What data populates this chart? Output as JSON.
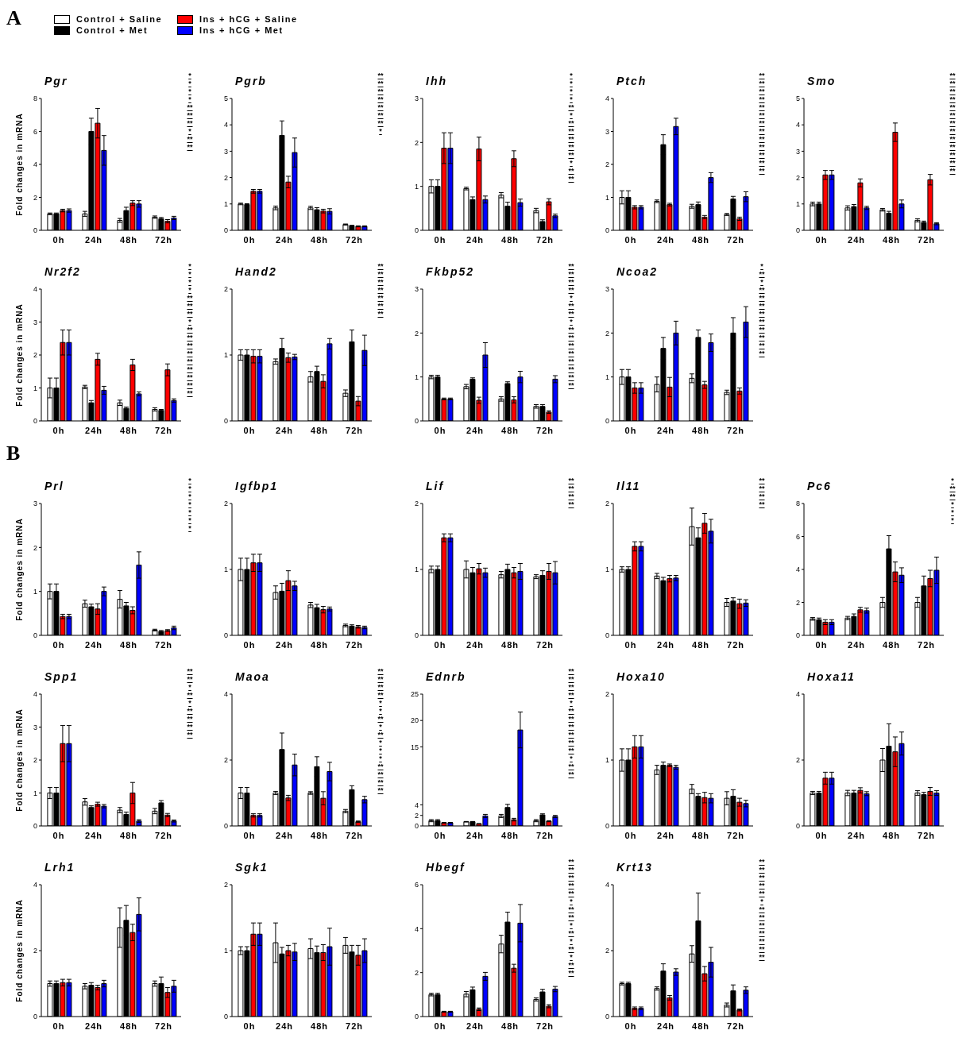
{
  "chart_data": [
    {
      "type": "bar",
      "title": "Pgr",
      "ylabel": "Fold changes in mRNA",
      "legend": "top right",
      "categories": [
        "0h",
        "24h",
        "48h",
        "72h"
      ],
      "ylim": [
        0,
        8
      ],
      "yticks": [
        0,
        2,
        4,
        6,
        8
      ],
      "series": [
        {
          "name": "Control + Saline",
          "color": "#ffffff",
          "values": [
            1.0,
            1.0,
            0.6,
            0.8
          ],
          "errors": [
            0.05,
            0.15,
            0.12,
            0.07
          ]
        },
        {
          "name": "Control + Met",
          "color": "#000000",
          "values": [
            1.0,
            6.0,
            1.2,
            0.7
          ],
          "errors": [
            0.05,
            0.8,
            0.2,
            0.08
          ]
        },
        {
          "name": "Ins + hCG + Saline",
          "color": "#ff0000",
          "values": [
            1.2,
            6.5,
            1.65,
            0.55
          ],
          "errors": [
            0.08,
            0.9,
            0.15,
            0.1
          ]
        },
        {
          "name": "Ins + hCG + Met",
          "color": "#0000ff",
          "values": [
            1.2,
            4.85,
            1.6,
            0.75
          ],
          "errors": [
            0.1,
            0.9,
            0.2,
            0.1
          ]
        }
      ],
      "annotations": [
        "A",
        "*",
        "*",
        "*",
        "*",
        "**",
        "**",
        "**",
        "*",
        "**",
        "**"
      ]
    },
    {
      "type": "bar",
      "title": "Pgrb",
      "categories": [
        "0h",
        "24h",
        "48h",
        "72h"
      ],
      "ylim": [
        0,
        5
      ],
      "yticks": [
        0,
        1,
        2,
        3,
        4,
        5
      ],
      "series": [
        {
          "color": "#ffffff",
          "values": [
            1.0,
            0.85,
            0.85,
            0.22
          ],
          "errors": [
            0.03,
            0.07,
            0.06,
            0.02
          ]
        },
        {
          "color": "#000000",
          "values": [
            0.98,
            3.6,
            0.78,
            0.17
          ],
          "errors": [
            0.03,
            0.55,
            0.08,
            0.02
          ]
        },
        {
          "color": "#ff0000",
          "values": [
            1.48,
            1.83,
            0.73,
            0.15
          ],
          "errors": [
            0.07,
            0.22,
            0.07,
            0.02
          ]
        },
        {
          "color": "#0000ff",
          "values": [
            1.48,
            2.95,
            0.72,
            0.15
          ],
          "errors": [
            0.07,
            0.55,
            0.1,
            0.02
          ]
        }
      ],
      "annotations": [
        "**",
        "**",
        "**",
        "**",
        "**",
        "**",
        "**",
        "*"
      ]
    },
    {
      "type": "bar",
      "title": "Ihh",
      "categories": [
        "0h",
        "24h",
        "48h",
        "72h"
      ],
      "ylim": [
        0,
        3
      ],
      "yticks": [
        0,
        1,
        2,
        3
      ],
      "series": [
        {
          "color": "#ffffff",
          "values": [
            1.0,
            0.95,
            0.8,
            0.45
          ],
          "errors": [
            0.15,
            0.03,
            0.06,
            0.05
          ]
        },
        {
          "color": "#000000",
          "values": [
            1.0,
            0.7,
            0.55,
            0.2
          ],
          "errors": [
            0.15,
            0.06,
            0.09,
            0.04
          ]
        },
        {
          "color": "#ff0000",
          "values": [
            1.87,
            1.85,
            1.63,
            0.65
          ],
          "errors": [
            0.35,
            0.27,
            0.18,
            0.07
          ]
        },
        {
          "color": "#0000ff",
          "values": [
            1.87,
            0.7,
            0.63,
            0.33
          ],
          "errors": [
            0.35,
            0.08,
            0.08,
            0.04
          ]
        }
      ],
      "annotations": [
        "*",
        "*",
        "*",
        "*",
        "**",
        "*",
        "**",
        "**",
        "**",
        "**",
        "**",
        "*",
        "**",
        "**"
      ]
    },
    {
      "type": "bar",
      "title": "Ptch",
      "categories": [
        "0h",
        "24h",
        "48h",
        "72h"
      ],
      "ylim": [
        0,
        4
      ],
      "yticks": [
        0,
        1,
        2,
        3,
        4
      ],
      "series": [
        {
          "color": "#ffffff",
          "values": [
            1.0,
            0.88,
            0.73,
            0.48
          ],
          "errors": [
            0.2,
            0.04,
            0.06,
            0.03
          ]
        },
        {
          "color": "#000000",
          "values": [
            1.0,
            2.6,
            0.78,
            0.95
          ],
          "errors": [
            0.2,
            0.3,
            0.08,
            0.08
          ]
        },
        {
          "color": "#ff0000",
          "values": [
            0.7,
            0.78,
            0.4,
            0.35
          ],
          "errors": [
            0.05,
            0.04,
            0.05,
            0.05
          ]
        },
        {
          "color": "#0000ff",
          "values": [
            0.7,
            3.15,
            1.6,
            1.02
          ],
          "errors": [
            0.05,
            0.25,
            0.15,
            0.15
          ]
        }
      ],
      "annotations": [
        "**",
        "**",
        "**",
        "**",
        "**",
        "**",
        "**",
        "**",
        "**",
        "**",
        "**",
        "**",
        "**"
      ]
    },
    {
      "type": "bar",
      "title": "Smo",
      "categories": [
        "0h",
        "24h",
        "48h",
        "72h"
      ],
      "ylim": [
        0,
        5
      ],
      "yticks": [
        0,
        1,
        2,
        3,
        4,
        5
      ],
      "series": [
        {
          "color": "#ffffff",
          "values": [
            1.0,
            0.85,
            0.78,
            0.38
          ],
          "errors": [
            0.07,
            0.08,
            0.05,
            0.06
          ]
        },
        {
          "color": "#000000",
          "values": [
            1.0,
            0.9,
            0.65,
            0.3
          ],
          "errors": [
            0.07,
            0.08,
            0.07,
            0.05
          ]
        },
        {
          "color": "#ff0000",
          "values": [
            2.1,
            1.8,
            3.72,
            1.92
          ],
          "errors": [
            0.17,
            0.15,
            0.35,
            0.2
          ]
        },
        {
          "color": "#0000ff",
          "values": [
            2.1,
            0.85,
            1.0,
            0.25
          ],
          "errors": [
            0.17,
            0.06,
            0.15,
            0.04
          ]
        }
      ],
      "annotations": [
        "**",
        "**",
        "**",
        "**",
        "**",
        "**",
        "**",
        "**",
        "**",
        "**",
        "**",
        "**",
        "**"
      ]
    },
    {
      "type": "bar",
      "title": "Nr2f2",
      "ylabel": "Fold changes in mRNA",
      "categories": [
        "0h",
        "24h",
        "48h",
        "72h"
      ],
      "ylim": [
        0,
        4
      ],
      "yticks": [
        0,
        1,
        2,
        3,
        4
      ],
      "series": [
        {
          "color": "#ffffff",
          "values": [
            1.0,
            1.03,
            0.55,
            0.35
          ],
          "errors": [
            0.3,
            0.05,
            0.08,
            0.05
          ]
        },
        {
          "color": "#000000",
          "values": [
            1.0,
            0.55,
            0.38,
            0.32
          ],
          "errors": [
            0.3,
            0.07,
            0.04,
            0.03
          ]
        },
        {
          "color": "#ff0000",
          "values": [
            2.38,
            1.87,
            1.7,
            1.55
          ],
          "errors": [
            0.38,
            0.18,
            0.17,
            0.18
          ]
        },
        {
          "color": "#0000ff",
          "values": [
            2.38,
            0.93,
            0.82,
            0.62
          ],
          "errors": [
            0.38,
            0.12,
            0.06,
            0.05
          ]
        }
      ],
      "annotations": [
        "*",
        "*",
        "*",
        "*",
        "**",
        "**",
        "**",
        "*",
        "**",
        "**",
        "**",
        "**",
        "**",
        "**",
        "**",
        "**",
        "**"
      ]
    },
    {
      "type": "bar",
      "title": "Hand2",
      "categories": [
        "0h",
        "24h",
        "48h",
        "72h"
      ],
      "ylim": [
        0,
        2
      ],
      "yticks": [
        0,
        1,
        2
      ],
      "series": [
        {
          "color": "#ffffff",
          "values": [
            1.0,
            0.9,
            0.67,
            0.42
          ],
          "errors": [
            0.08,
            0.04,
            0.08,
            0.05
          ]
        },
        {
          "color": "#000000",
          "values": [
            1.0,
            1.1,
            0.75,
            1.2
          ],
          "errors": [
            0.08,
            0.15,
            0.08,
            0.18
          ]
        },
        {
          "color": "#ff0000",
          "values": [
            0.98,
            0.96,
            0.6,
            0.3
          ],
          "errors": [
            0.1,
            0.07,
            0.1,
            0.07
          ]
        },
        {
          "color": "#0000ff",
          "values": [
            0.98,
            0.97,
            1.17,
            1.07
          ],
          "errors": [
            0.1,
            0.04,
            0.08,
            0.23
          ]
        }
      ],
      "annotations": [
        "**",
        "**",
        "**",
        "**",
        "**",
        "**",
        "**"
      ]
    },
    {
      "type": "bar",
      "title": "Fkbp52",
      "categories": [
        "0h",
        "24h",
        "48h",
        "72h"
      ],
      "ylim": [
        0,
        3
      ],
      "yticks": [
        0,
        1,
        2,
        3
      ],
      "series": [
        {
          "color": "#ffffff",
          "values": [
            1.0,
            0.78,
            0.5,
            0.33
          ],
          "errors": [
            0.04,
            0.05,
            0.05,
            0.04
          ]
        },
        {
          "color": "#000000",
          "values": [
            1.0,
            0.95,
            0.85,
            0.33
          ],
          "errors": [
            0.04,
            0.03,
            0.04,
            0.04
          ]
        },
        {
          "color": "#ff0000",
          "values": [
            0.5,
            0.47,
            0.48,
            0.2
          ],
          "errors": [
            0.02,
            0.07,
            0.07,
            0.03
          ]
        },
        {
          "color": "#0000ff",
          "values": [
            0.5,
            1.5,
            1.0,
            0.95
          ],
          "errors": [
            0.02,
            0.28,
            0.13,
            0.08
          ]
        }
      ],
      "annotations": [
        "**",
        "**",
        "**",
        "**",
        "*",
        "**",
        "**",
        "*",
        "**",
        "**",
        "**",
        "**",
        "**",
        "**",
        "**",
        "**"
      ]
    },
    {
      "type": "bar",
      "title": "Ncoa2",
      "categories": [
        "0h",
        "24h",
        "48h",
        "72h"
      ],
      "ylim": [
        0,
        3
      ],
      "yticks": [
        0,
        1,
        2,
        3
      ],
      "series": [
        {
          "color": "#ffffff",
          "values": [
            1.0,
            0.83,
            0.97,
            0.65
          ],
          "errors": [
            0.17,
            0.17,
            0.1,
            0.05
          ]
        },
        {
          "color": "#000000",
          "values": [
            1.0,
            1.65,
            1.9,
            2.0
          ],
          "errors": [
            0.17,
            0.25,
            0.17,
            0.35
          ]
        },
        {
          "color": "#ff0000",
          "values": [
            0.75,
            0.77,
            0.82,
            0.68
          ],
          "errors": [
            0.12,
            0.22,
            0.08,
            0.07
          ]
        },
        {
          "color": "#0000ff",
          "values": [
            0.75,
            2.0,
            1.78,
            2.25
          ],
          "errors": [
            0.12,
            0.27,
            0.2,
            0.35
          ]
        }
      ],
      "annotations": [
        "*",
        "**",
        "*",
        "**",
        "**",
        "**",
        "**",
        "**",
        "**",
        "**",
        "**",
        "**"
      ]
    },
    {
      "type": "bar",
      "title": "Prl",
      "ylabel": "Fold changes in mRNA",
      "categories": [
        "0h",
        "24h",
        "48h",
        "72h"
      ],
      "ylim": [
        0,
        3
      ],
      "yticks": [
        0,
        1,
        2,
        3
      ],
      "series": [
        {
          "color": "#ffffff",
          "values": [
            1.0,
            0.72,
            0.82,
            0.12
          ],
          "errors": [
            0.17,
            0.08,
            0.2,
            0.02
          ]
        },
        {
          "color": "#000000",
          "values": [
            1.0,
            0.65,
            0.67,
            0.09
          ],
          "errors": [
            0.17,
            0.06,
            0.08,
            0.02
          ]
        },
        {
          "color": "#ff0000",
          "values": [
            0.43,
            0.6,
            0.57,
            0.11
          ],
          "errors": [
            0.05,
            0.12,
            0.08,
            0.02
          ]
        },
        {
          "color": "#0000ff",
          "values": [
            0.43,
            1.0,
            1.6,
            0.17
          ],
          "errors": [
            0.05,
            0.1,
            0.3,
            0.04
          ]
        }
      ],
      "annotations": [
        "B",
        "*",
        "*",
        "*",
        "*",
        "*",
        "*",
        "*"
      ]
    },
    {
      "type": "bar",
      "title": "Igfbp1",
      "categories": [
        "0h",
        "24h",
        "48h",
        "72h"
      ],
      "ylim": [
        0,
        2
      ],
      "yticks": [
        0,
        1,
        2
      ],
      "series": [
        {
          "color": "#ffffff",
          "values": [
            1.0,
            0.65,
            0.46,
            0.15
          ],
          "errors": [
            0.17,
            0.1,
            0.04,
            0.02
          ]
        },
        {
          "color": "#000000",
          "values": [
            1.0,
            0.67,
            0.42,
            0.14
          ],
          "errors": [
            0.17,
            0.12,
            0.05,
            0.02
          ]
        },
        {
          "color": "#ff0000",
          "values": [
            1.1,
            0.83,
            0.39,
            0.13
          ],
          "errors": [
            0.13,
            0.15,
            0.05,
            0.02
          ]
        },
        {
          "color": "#0000ff",
          "values": [
            1.1,
            0.75,
            0.4,
            0.12
          ],
          "errors": [
            0.13,
            0.07,
            0.03,
            0.02
          ]
        }
      ]
    },
    {
      "type": "bar",
      "title": "Lif",
      "categories": [
        "0h",
        "24h",
        "48h",
        "72h"
      ],
      "ylim": [
        0,
        2
      ],
      "yticks": [
        0,
        1,
        2
      ],
      "series": [
        {
          "color": "#ffffff",
          "values": [
            1.0,
            1.0,
            0.92,
            0.89
          ],
          "errors": [
            0.05,
            0.13,
            0.05,
            0.03
          ]
        },
        {
          "color": "#000000",
          "values": [
            1.0,
            0.95,
            1.0,
            0.91
          ],
          "errors": [
            0.05,
            0.08,
            0.08,
            0.07
          ]
        },
        {
          "color": "#ff0000",
          "values": [
            1.48,
            1.01,
            0.95,
            0.97
          ],
          "errors": [
            0.06,
            0.08,
            0.08,
            0.12
          ]
        },
        {
          "color": "#0000ff",
          "values": [
            1.48,
            0.95,
            0.97,
            0.95
          ],
          "errors": [
            0.06,
            0.07,
            0.12,
            0.17
          ]
        }
      ],
      "annotations": [
        "**",
        "**",
        "**",
        "**"
      ]
    },
    {
      "type": "bar",
      "title": "Il11",
      "categories": [
        "0h",
        "24h",
        "48h",
        "72h"
      ],
      "ylim": [
        0,
        2
      ],
      "yticks": [
        0,
        1,
        2
      ],
      "series": [
        {
          "color": "#ffffff",
          "values": [
            1.0,
            0.9,
            1.65,
            0.5
          ],
          "errors": [
            0.04,
            0.04,
            0.28,
            0.06
          ]
        },
        {
          "color": "#000000",
          "values": [
            1.0,
            0.83,
            1.48,
            0.52
          ],
          "errors": [
            0.04,
            0.05,
            0.15,
            0.05
          ]
        },
        {
          "color": "#ff0000",
          "values": [
            1.35,
            0.86,
            1.7,
            0.48
          ],
          "errors": [
            0.07,
            0.05,
            0.15,
            0.07
          ]
        },
        {
          "color": "#0000ff",
          "values": [
            1.35,
            0.87,
            1.58,
            0.49
          ],
          "errors": [
            0.07,
            0.04,
            0.18,
            0.05
          ]
        }
      ],
      "annotations": [
        "**",
        "**",
        "**",
        "**"
      ]
    },
    {
      "type": "bar",
      "title": "Pc6",
      "categories": [
        "0h",
        "24h",
        "48h",
        "72h"
      ],
      "ylim": [
        0,
        8
      ],
      "yticks": [
        0,
        2,
        4,
        6,
        8
      ],
      "series": [
        {
          "color": "#ffffff",
          "values": [
            1.0,
            1.05,
            2.0,
            2.0
          ],
          "errors": [
            0.08,
            0.1,
            0.3,
            0.3
          ]
        },
        {
          "color": "#000000",
          "values": [
            0.95,
            1.15,
            5.25,
            3.0
          ],
          "errors": [
            0.1,
            0.15,
            0.8,
            0.6
          ]
        },
        {
          "color": "#ff0000",
          "values": [
            0.8,
            1.55,
            3.85,
            3.45
          ],
          "errors": [
            0.15,
            0.15,
            0.6,
            0.5
          ]
        },
        {
          "color": "#0000ff",
          "values": [
            0.8,
            1.5,
            3.65,
            3.95
          ],
          "errors": [
            0.15,
            0.15,
            0.45,
            0.8
          ]
        }
      ],
      "annotations": [
        "*",
        "**",
        "**",
        "*",
        "*",
        "*"
      ]
    },
    {
      "type": "bar",
      "title": "Spp1",
      "ylabel": "Fold changes in mRNA",
      "categories": [
        "0h",
        "24h",
        "48h",
        "72h"
      ],
      "ylim": [
        0,
        4
      ],
      "yticks": [
        0,
        1,
        2,
        3,
        4
      ],
      "series": [
        {
          "color": "#ffffff",
          "values": [
            1.0,
            0.73,
            0.48,
            0.45
          ],
          "errors": [
            0.17,
            0.1,
            0.08,
            0.08
          ]
        },
        {
          "color": "#000000",
          "values": [
            1.0,
            0.56,
            0.35,
            0.7
          ],
          "errors": [
            0.17,
            0.05,
            0.07,
            0.07
          ]
        },
        {
          "color": "#ff0000",
          "values": [
            2.5,
            0.66,
            1.0,
            0.33
          ],
          "errors": [
            0.55,
            0.06,
            0.32,
            0.05
          ]
        },
        {
          "color": "#0000ff",
          "values": [
            2.5,
            0.6,
            0.15,
            0.15
          ],
          "errors": [
            0.55,
            0.05,
            0.04,
            0.03
          ]
        }
      ],
      "annotations": [
        "**",
        "**",
        "*",
        "**",
        "*",
        "**",
        "**",
        "**",
        "**"
      ]
    },
    {
      "type": "bar",
      "title": "Maoa",
      "categories": [
        "0h",
        "24h",
        "48h",
        "72h"
      ],
      "ylim": [
        0,
        4
      ],
      "yticks": [
        0,
        2,
        4
      ],
      "series": [
        {
          "color": "#ffffff",
          "values": [
            1.0,
            1.0,
            1.0,
            0.45
          ],
          "errors": [
            0.17,
            0.05,
            0.04,
            0.05
          ]
        },
        {
          "color": "#000000",
          "values": [
            1.0,
            2.32,
            1.8,
            1.1
          ],
          "errors": [
            0.17,
            0.5,
            0.3,
            0.12
          ]
        },
        {
          "color": "#ff0000",
          "values": [
            0.32,
            0.85,
            0.84,
            0.13
          ],
          "errors": [
            0.05,
            0.08,
            0.2,
            0.02
          ]
        },
        {
          "color": "#0000ff",
          "values": [
            0.32,
            1.85,
            1.65,
            0.8
          ],
          "errors": [
            0.05,
            0.33,
            0.28,
            0.1
          ]
        }
      ],
      "annotations": [
        "**",
        "**",
        "**",
        "**",
        "*",
        "*",
        "**",
        "*",
        "**",
        "*",
        "*",
        "*",
        "**",
        "**",
        "**",
        "**"
      ]
    },
    {
      "type": "bar",
      "title": "Ednrb",
      "categories": [
        "0h",
        "24h",
        "48h",
        "72h"
      ],
      "ylim": [
        0,
        25
      ],
      "yticks": [
        0,
        2,
        4,
        15,
        20,
        25
      ],
      "series": [
        {
          "color": "#ffffff",
          "values": [
            1.0,
            0.8,
            1.9,
            1.0
          ],
          "errors": [
            0.2,
            0.05,
            0.3,
            0.2
          ]
        },
        {
          "color": "#000000",
          "values": [
            1.0,
            0.8,
            3.5,
            2.1
          ],
          "errors": [
            0.2,
            0.05,
            0.6,
            0.2
          ]
        },
        {
          "color": "#ff0000",
          "values": [
            0.6,
            0.4,
            1.2,
            0.9
          ],
          "errors": [
            0.06,
            0.05,
            0.25,
            0.1
          ]
        },
        {
          "color": "#0000ff",
          "values": [
            0.6,
            1.9,
            18.2,
            1.8
          ],
          "errors": [
            0.07,
            0.3,
            3.4,
            0.2
          ]
        }
      ],
      "annotations": [
        "**",
        "**",
        "**",
        "**",
        "*",
        "**",
        "**",
        "**",
        "**",
        "**",
        "**",
        "*",
        "**",
        "**"
      ]
    },
    {
      "type": "bar",
      "title": "Hoxa10",
      "categories": [
        "0h",
        "24h",
        "48h",
        "72h"
      ],
      "ylim": [
        0,
        2
      ],
      "yticks": [
        0,
        1,
        2
      ],
      "series": [
        {
          "color": "#ffffff",
          "values": [
            1.0,
            0.85,
            0.56,
            0.42
          ],
          "errors": [
            0.17,
            0.07,
            0.07,
            0.1
          ]
        },
        {
          "color": "#000000",
          "values": [
            1.0,
            0.92,
            0.45,
            0.45
          ],
          "errors": [
            0.17,
            0.05,
            0.04,
            0.1
          ]
        },
        {
          "color": "#ff0000",
          "values": [
            1.2,
            0.92,
            0.43,
            0.36
          ],
          "errors": [
            0.17,
            0.02,
            0.08,
            0.06
          ]
        },
        {
          "color": "#0000ff",
          "values": [
            1.2,
            0.89,
            0.42,
            0.34
          ],
          "errors": [
            0.17,
            0.03,
            0.07,
            0.05
          ]
        }
      ]
    },
    {
      "type": "bar",
      "title": "Hoxa11",
      "categories": [
        "0h",
        "24h",
        "48h",
        "72h"
      ],
      "ylim": [
        0,
        4
      ],
      "yticks": [
        0,
        2,
        4
      ],
      "series": [
        {
          "color": "#ffffff",
          "values": [
            1.0,
            1.0,
            2.0,
            1.0
          ],
          "errors": [
            0.05,
            0.08,
            0.35,
            0.07
          ]
        },
        {
          "color": "#000000",
          "values": [
            1.0,
            1.0,
            2.42,
            0.95
          ],
          "errors": [
            0.05,
            0.08,
            0.68,
            0.07
          ]
        },
        {
          "color": "#ff0000",
          "values": [
            1.45,
            1.08,
            2.25,
            1.05
          ],
          "errors": [
            0.18,
            0.08,
            0.45,
            0.12
          ]
        },
        {
          "color": "#0000ff",
          "values": [
            1.45,
            0.98,
            2.5,
            1.0
          ],
          "errors": [
            0.18,
            0.06,
            0.35,
            0.07
          ]
        }
      ]
    },
    {
      "type": "bar",
      "title": "Lrh1",
      "ylabel": "Fold changes in mRNA",
      "categories": [
        "0h",
        "24h",
        "48h",
        "72h"
      ],
      "ylim": [
        0,
        4
      ],
      "yticks": [
        0,
        2,
        4
      ],
      "series": [
        {
          "color": "#ffffff",
          "values": [
            1.0,
            0.92,
            2.7,
            1.0
          ],
          "errors": [
            0.08,
            0.08,
            0.6,
            0.08
          ]
        },
        {
          "color": "#000000",
          "values": [
            1.0,
            0.95,
            2.92,
            1.0
          ],
          "errors": [
            0.08,
            0.08,
            0.45,
            0.2
          ]
        },
        {
          "color": "#ff0000",
          "values": [
            1.03,
            0.88,
            2.55,
            0.73
          ],
          "errors": [
            0.1,
            0.07,
            0.25,
            0.15
          ]
        },
        {
          "color": "#0000ff",
          "values": [
            1.03,
            1.0,
            3.1,
            0.92
          ],
          "errors": [
            0.1,
            0.1,
            0.5,
            0.18
          ]
        }
      ]
    },
    {
      "type": "bar",
      "title": "Sgk1",
      "categories": [
        "0h",
        "24h",
        "48h",
        "72h"
      ],
      "ylim": [
        0,
        2
      ],
      "yticks": [
        0,
        1,
        2
      ],
      "series": [
        {
          "color": "#ffffff",
          "values": [
            1.0,
            1.12,
            1.03,
            1.08
          ],
          "errors": [
            0.06,
            0.3,
            0.15,
            0.12
          ]
        },
        {
          "color": "#000000",
          "values": [
            1.0,
            0.95,
            0.97,
            0.98
          ],
          "errors": [
            0.06,
            0.1,
            0.1,
            0.1
          ]
        },
        {
          "color": "#ff0000",
          "values": [
            1.25,
            1.0,
            0.97,
            0.93
          ],
          "errors": [
            0.17,
            0.08,
            0.12,
            0.15
          ]
        },
        {
          "color": "#0000ff",
          "values": [
            1.25,
            0.98,
            1.06,
            1.0
          ],
          "errors": [
            0.17,
            0.13,
            0.28,
            0.18
          ]
        }
      ]
    },
    {
      "type": "bar",
      "title": "Hbegf",
      "categories": [
        "0h",
        "24h",
        "48h",
        "72h"
      ],
      "ylim": [
        0,
        6
      ],
      "yticks": [
        0,
        2,
        4,
        6
      ],
      "series": [
        {
          "color": "#ffffff",
          "values": [
            1.0,
            1.02,
            3.3,
            0.78
          ],
          "errors": [
            0.06,
            0.12,
            0.4,
            0.07
          ]
        },
        {
          "color": "#000000",
          "values": [
            1.0,
            1.22,
            4.3,
            1.12
          ],
          "errors": [
            0.06,
            0.12,
            0.45,
            0.12
          ]
        },
        {
          "color": "#ff0000",
          "values": [
            0.22,
            0.33,
            2.2,
            0.47
          ],
          "errors": [
            0.02,
            0.06,
            0.18,
            0.07
          ]
        },
        {
          "color": "#0000ff",
          "values": [
            0.22,
            1.83,
            4.25,
            1.25
          ],
          "errors": [
            0.02,
            0.18,
            0.85,
            0.12
          ]
        }
      ],
      "annotations": [
        "**",
        "**",
        "**",
        "**",
        "**",
        "*",
        "**",
        "**",
        "*",
        "**",
        "*",
        "**",
        "*",
        "**",
        "**"
      ]
    },
    {
      "type": "bar",
      "title": "Krt13",
      "categories": [
        "0h",
        "24h",
        "48h",
        "72h"
      ],
      "ylim": [
        0,
        4
      ],
      "yticks": [
        0,
        2,
        4
      ],
      "series": [
        {
          "color": "#ffffff",
          "values": [
            1.0,
            0.85,
            1.9,
            0.35
          ],
          "errors": [
            0.04,
            0.05,
            0.25,
            0.06
          ]
        },
        {
          "color": "#000000",
          "values": [
            1.0,
            1.38,
            2.9,
            0.78
          ],
          "errors": [
            0.04,
            0.22,
            0.85,
            0.18
          ]
        },
        {
          "color": "#ff0000",
          "values": [
            0.25,
            0.57,
            1.3,
            0.2
          ],
          "errors": [
            0.04,
            0.07,
            0.22,
            0.03
          ]
        },
        {
          "color": "#0000ff",
          "values": [
            0.25,
            1.35,
            1.65,
            0.8
          ],
          "errors": [
            0.04,
            0.1,
            0.45,
            0.1
          ]
        }
      ],
      "annotations": [
        "**",
        "**",
        "**",
        "**",
        "**",
        "*",
        "**",
        "**",
        "**",
        "**",
        "**",
        "**",
        "**"
      ]
    }
  ]
}
